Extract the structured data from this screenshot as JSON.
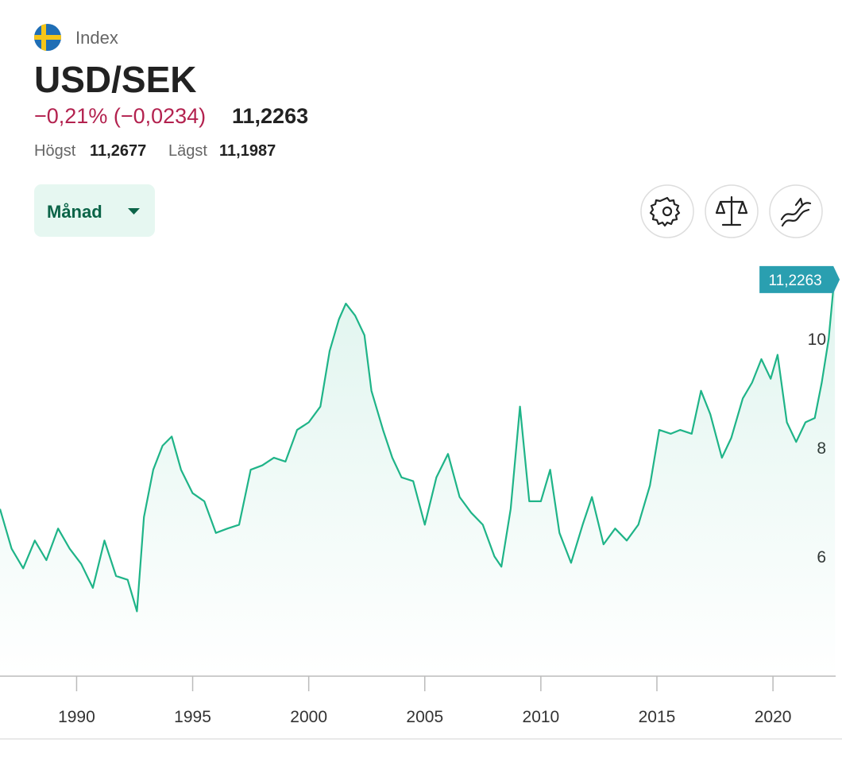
{
  "header": {
    "category": "Index",
    "title": "USD/SEK",
    "change": "−0,21% (−0,0234)",
    "price": "11,2263",
    "high_label": "Högst",
    "high": "11,2677",
    "low_label": "Lägst",
    "low": "11,1987"
  },
  "controls": {
    "period": "Månad"
  },
  "chart_data": {
    "type": "line",
    "color": "#1fb488",
    "label_color": "#2a9fb0",
    "x": [
      1986.7,
      1987.2,
      1987.7,
      1988.2,
      1988.7,
      1989.2,
      1989.7,
      1990.2,
      1990.7,
      1991.2,
      1991.7,
      1992.2,
      1992.6,
      1992.9,
      1993.3,
      1993.7,
      1994.1,
      1994.5,
      1995.0,
      1995.5,
      1996.0,
      1996.5,
      1997.0,
      1997.5,
      1998.0,
      1998.5,
      1999.0,
      1999.5,
      2000.0,
      2000.5,
      2000.9,
      2001.3,
      2001.6,
      2002.0,
      2002.4,
      2002.7,
      2003.2,
      2003.6,
      2004.0,
      2004.5,
      2005.0,
      2005.5,
      2006.0,
      2006.5,
      2007.0,
      2007.5,
      2008.0,
      2008.3,
      2008.7,
      2009.1,
      2009.5,
      2010.0,
      2010.4,
      2010.8,
      2011.3,
      2011.8,
      2012.2,
      2012.7,
      2013.2,
      2013.7,
      2014.2,
      2014.7,
      2015.1,
      2015.6,
      2016.0,
      2016.5,
      2016.9,
      2017.3,
      2017.8,
      2018.2,
      2018.7,
      2019.1,
      2019.5,
      2019.9,
      2020.2,
      2020.6,
      2021.0,
      2021.4,
      2021.8,
      2022.1,
      2022.4,
      2022.67
    ],
    "values": [
      6.87,
      6.14,
      5.78,
      6.29,
      5.93,
      6.51,
      6.14,
      5.86,
      5.42,
      6.29,
      5.64,
      5.57,
      4.99,
      6.72,
      7.59,
      8.03,
      8.2,
      7.59,
      7.16,
      7.01,
      6.43,
      6.51,
      6.58,
      7.59,
      7.67,
      7.81,
      7.74,
      8.32,
      8.46,
      8.75,
      9.77,
      10.35,
      10.64,
      10.42,
      10.06,
      9.04,
      8.32,
      7.81,
      7.45,
      7.38,
      6.58,
      7.45,
      7.88,
      7.09,
      6.8,
      6.58,
      6.0,
      5.81,
      6.87,
      8.75,
      7.01,
      7.01,
      7.59,
      6.43,
      5.88,
      6.58,
      7.09,
      6.22,
      6.51,
      6.29,
      6.58,
      7.3,
      8.32,
      8.25,
      8.32,
      8.25,
      9.04,
      8.61,
      7.81,
      8.17,
      8.9,
      9.19,
      9.62,
      9.26,
      9.7,
      8.46,
      8.1,
      8.46,
      8.54,
      9.19,
      9.99,
      11.2263
    ],
    "value_labels": [
      null,
      null,
      null,
      null,
      null,
      null,
      null,
      null,
      null,
      null,
      null,
      null,
      null,
      null,
      null,
      null,
      null,
      null,
      null,
      null,
      null,
      null,
      null,
      null,
      null,
      null,
      null,
      null,
      null,
      null,
      null,
      null,
      null,
      null,
      null,
      null,
      null,
      null,
      null,
      null,
      null,
      null,
      null,
      null,
      null,
      null,
      null,
      null,
      null,
      null,
      null,
      null,
      null,
      null,
      null,
      null,
      null,
      null,
      null,
      null,
      null,
      null,
      null,
      null,
      null,
      null,
      null,
      null,
      null,
      null,
      null,
      null,
      null,
      null,
      null,
      null,
      null,
      null,
      null,
      null,
      null,
      "11,2263"
    ],
    "xlim": [
      1986.7,
      2022.7
    ],
    "xticks": [
      1990,
      1995,
      2000,
      2005,
      2010,
      2015,
      2020
    ],
    "ylim": [
      3.8,
      11.4
    ],
    "yticks": [
      6,
      8,
      10
    ]
  }
}
